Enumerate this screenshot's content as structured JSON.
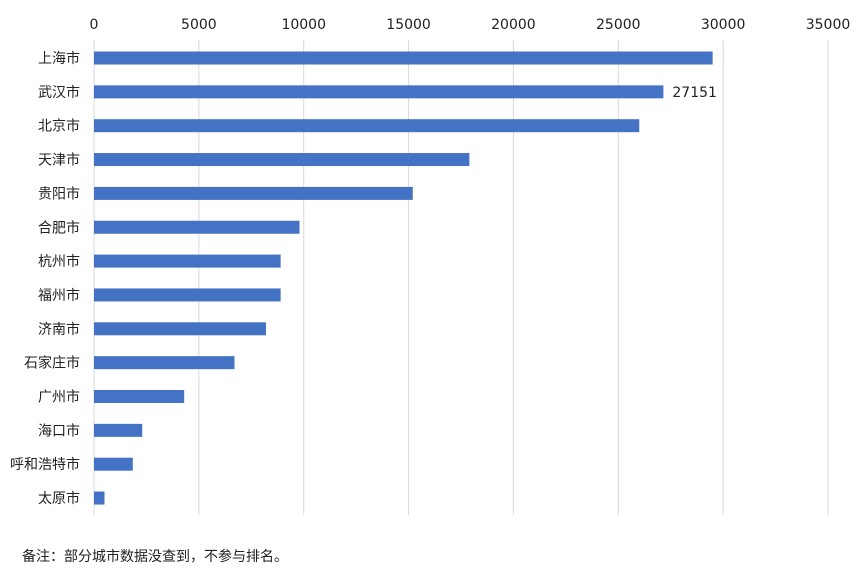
{
  "chart_data": {
    "type": "bar",
    "orientation": "horizontal",
    "categories": [
      "上海市",
      "武汉市",
      "北京市",
      "天津市",
      "贵阳市",
      "合肥市",
      "杭州市",
      "福州市",
      "济南市",
      "石家庄市",
      "广州市",
      "海口市",
      "呼和浩特市",
      "太原市"
    ],
    "values": [
      29500,
      27151,
      26000,
      17900,
      15200,
      9800,
      8900,
      8900,
      8200,
      6700,
      4300,
      2300,
      1850,
      500
    ],
    "data_labels": [
      {
        "category": "武汉市",
        "text": "27151"
      }
    ],
    "xlim": [
      0,
      35000
    ],
    "xticks": [
      "0",
      "5000",
      "10000",
      "15000",
      "20000",
      "25000",
      "30000",
      "35000"
    ],
    "tick_values": [
      0,
      5000,
      10000,
      15000,
      20000,
      25000,
      30000,
      35000
    ],
    "x_axis_position": "top",
    "grid": "vertical",
    "legend": "none",
    "bar_color": "#4472C4",
    "grid_color": "#D9D9D9"
  },
  "footnote": "备注：部分城市数据没查到，不参与排名。"
}
